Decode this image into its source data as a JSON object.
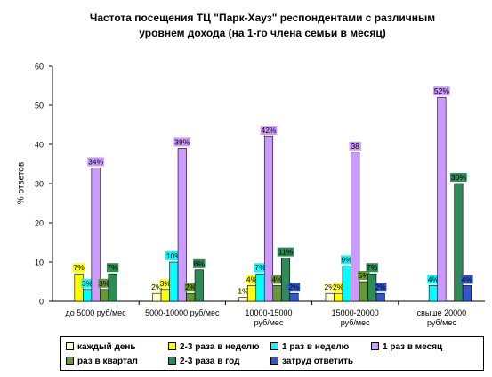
{
  "title_lines": [
    "Частота посещения ТЦ \"Парк-Хауз\" респондентами с различным",
    "уровнем дохода (на 1-го члена семьи в месяц)"
  ],
  "chart_data": {
    "type": "bar",
    "title": "Частота посещения ТЦ \"Парк-Хауз\" респондентами с различным уровнем дохода (на 1-го члена семьи в месяц)",
    "xlabel": "",
    "ylabel": "% ответов",
    "ylim": [
      0,
      60
    ],
    "yticks": [
      0,
      10,
      20,
      30,
      40,
      50,
      60
    ],
    "grid": false,
    "legend": "bottom",
    "categories": [
      [
        "до 5000 руб/мес"
      ],
      [
        "5000-10000 руб/мес"
      ],
      [
        "10000-15000",
        "руб/мес"
      ],
      [
        "15000-20000",
        "руб/мес"
      ],
      [
        "свыше 20000",
        "руб/мес"
      ]
    ],
    "series": [
      {
        "name": "каждый день",
        "color": "#ffffcc",
        "values": [
          null,
          2,
          1,
          2,
          null
        ],
        "labels": [
          "",
          "2%",
          "1%",
          "2%",
          ""
        ]
      },
      {
        "name": "2-3 раза в неделю",
        "color": "#ffff00",
        "values": [
          7,
          3,
          4,
          2,
          null
        ],
        "labels": [
          "7%",
          "3%",
          "4%",
          "2%",
          ""
        ]
      },
      {
        "name": "1 раз в неделю",
        "color": "#00ffff",
        "values": [
          3,
          10,
          7,
          9,
          4
        ],
        "labels": [
          "3%",
          "10%",
          "7%",
          "9%",
          "4%"
        ]
      },
      {
        "name": "1 раз в месяц",
        "color": "#cc99ff",
        "values": [
          34,
          39,
          42,
          38,
          52
        ],
        "labels": [
          "34%",
          "39%",
          "42%",
          "38",
          "52%"
        ]
      },
      {
        "name": "раз в квартал",
        "color": "#669933",
        "values": [
          3,
          2,
          4,
          5,
          null
        ],
        "labels": [
          "3%",
          "2%",
          "4%",
          "5%",
          ""
        ]
      },
      {
        "name": "2-3 раза в год",
        "color": "#2e8b57",
        "values": [
          7,
          8,
          11,
          7,
          30
        ],
        "labels": [
          "7%",
          "8%",
          "11%",
          "7%",
          "30%"
        ]
      },
      {
        "name": "затруд ответить",
        "color": "#3355cc",
        "values": [
          null,
          null,
          2,
          2,
          4
        ],
        "labels": [
          "",
          "",
          "2%",
          "2%",
          "4%"
        ]
      }
    ]
  }
}
